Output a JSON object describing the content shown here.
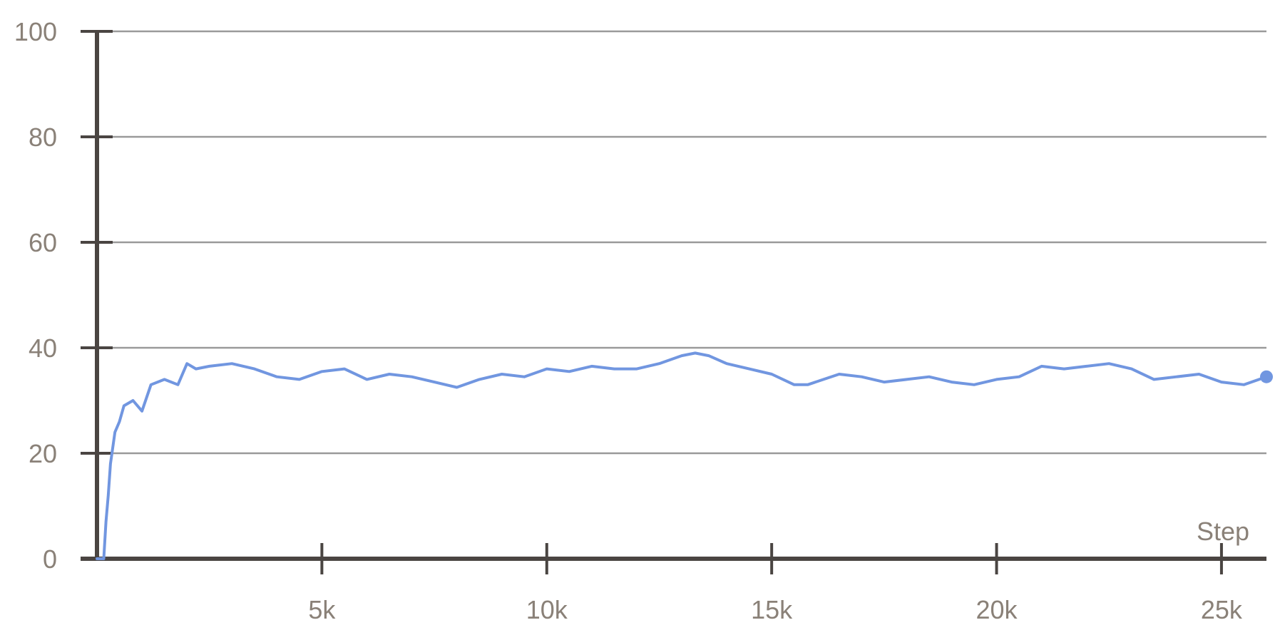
{
  "chart_data": {
    "type": "line",
    "title": "",
    "xlabel": "Step",
    "ylabel": "",
    "xlim": [
      0,
      26000
    ],
    "ylim": [
      0,
      100
    ],
    "grid": true,
    "legend": "none",
    "x_ticks": [
      {
        "value": 5000,
        "label": "5k"
      },
      {
        "value": 10000,
        "label": "10k"
      },
      {
        "value": 15000,
        "label": "15k"
      },
      {
        "value": 20000,
        "label": "20k"
      },
      {
        "value": 25000,
        "label": "25k"
      }
    ],
    "y_ticks": [
      {
        "value": 0,
        "label": "0"
      },
      {
        "value": 20,
        "label": "20"
      },
      {
        "value": 40,
        "label": "40"
      },
      {
        "value": 60,
        "label": "60"
      },
      {
        "value": 80,
        "label": "80"
      },
      {
        "value": 100,
        "label": "100"
      }
    ],
    "series": [
      {
        "color": "#7196e0",
        "end_marker": true,
        "x": [
          0,
          150,
          200,
          250,
          300,
          400,
          500,
          600,
          800,
          1000,
          1200,
          1500,
          1800,
          2000,
          2200,
          2500,
          3000,
          3500,
          4000,
          4500,
          5000,
          5500,
          6000,
          6500,
          7000,
          7500,
          8000,
          8500,
          9000,
          9500,
          10000,
          10500,
          11000,
          11500,
          12000,
          12500,
          13000,
          13300,
          13600,
          14000,
          14500,
          15000,
          15500,
          15800,
          16500,
          17000,
          17500,
          18000,
          18500,
          19000,
          19500,
          20000,
          20500,
          21000,
          21500,
          22000,
          22500,
          23000,
          23500,
          24000,
          24500,
          25000,
          25500,
          26000
        ],
        "values": [
          0,
          0,
          7,
          12,
          18,
          24,
          26,
          29,
          30,
          28,
          33,
          34,
          33,
          37,
          36,
          36.5,
          37,
          36,
          34.5,
          34,
          35.5,
          36,
          34,
          35,
          34.5,
          33.5,
          32.5,
          34,
          35,
          34.5,
          36,
          35.5,
          36.5,
          36,
          36,
          37,
          38.5,
          39,
          38.5,
          37,
          36,
          35,
          33,
          33,
          35,
          34.5,
          33.5,
          34,
          34.5,
          33.5,
          33,
          34,
          34.5,
          36.5,
          36,
          36.5,
          37,
          36,
          34,
          34.5,
          35,
          33.5,
          33,
          34.5
        ]
      }
    ]
  }
}
